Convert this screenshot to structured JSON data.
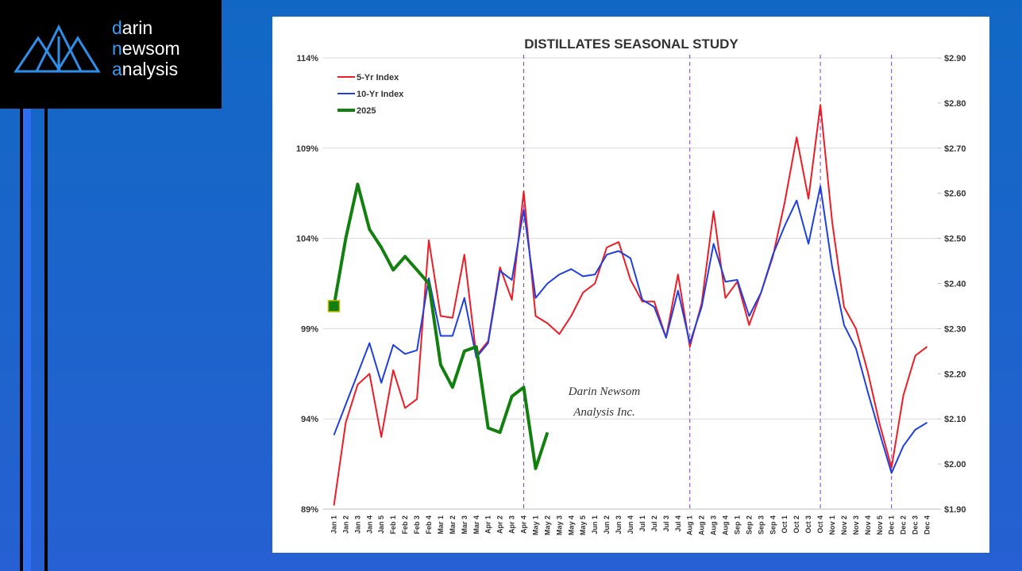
{
  "logo": [
    "darin",
    "newsom",
    "analysis"
  ],
  "chart_data": {
    "type": "line",
    "title": "DISTILLATES SEASONAL STUDY",
    "categories": [
      "Jan 1",
      "Jan 2",
      "Jan 3",
      "Jan 4",
      "Jan 5",
      "Feb 1",
      "Feb 2",
      "Feb 3",
      "Feb 4",
      "Mar 1",
      "Mar 2",
      "Mar 3",
      "Mar 4",
      "Apr 1",
      "Apr 2",
      "Apr 3",
      "Apr 4",
      "May 1",
      "May 2",
      "May 3",
      "May 4",
      "May 5",
      "Jun 1",
      "Jun 2",
      "Jun 3",
      "Jun 4",
      "Jul 1",
      "Jul 2",
      "Jul 3",
      "Jul 4",
      "Aug 1",
      "Aug 2",
      "Aug 3",
      "Aug 4",
      "Sep 1",
      "Sep 2",
      "Sep 3",
      "Sep 4",
      "Oct 1",
      "Oct 2",
      "Oct 3",
      "Oct 4",
      "Nov 1",
      "Nov 2",
      "Nov 3",
      "Nov 4",
      "Nov 5",
      "Dec 1",
      "Dec 2",
      "Dec 3",
      "Dec 4"
    ],
    "series": [
      {
        "name": "5-Yr Index",
        "color": "#ee1c25",
        "values": [
          89.2,
          93.8,
          95.9,
          96.5,
          93.0,
          96.7,
          94.6,
          95.1,
          103.9,
          99.7,
          99.6,
          103.1,
          97.5,
          98.3,
          102.4,
          100.6,
          106.6,
          99.7,
          99.3,
          98.7,
          99.7,
          101.0,
          101.5,
          103.5,
          103.8,
          101.7,
          100.5,
          100.5,
          98.5,
          102.0,
          98.0,
          100.4,
          105.5,
          100.7,
          101.6,
          99.2,
          101.0,
          103.0,
          106.0,
          109.6,
          106.2,
          111.4,
          104.9,
          100.2,
          99.0,
          96.6,
          93.7,
          91.3,
          95.3,
          97.5,
          98.0
        ]
      },
      {
        "name": "10-Yr Index",
        "color": "#1f3fe0",
        "values": [
          93.1,
          94.8,
          96.5,
          98.2,
          96.0,
          98.1,
          97.6,
          97.8,
          101.8,
          98.6,
          98.6,
          100.7,
          97.4,
          98.2,
          102.2,
          101.7,
          105.6,
          100.7,
          101.5,
          102.0,
          102.3,
          101.9,
          102.0,
          103.1,
          103.3,
          102.9,
          100.6,
          100.2,
          98.5,
          101.1,
          98.2,
          100.2,
          103.7,
          101.6,
          101.7,
          99.7,
          101.0,
          103.1,
          104.7,
          106.1,
          103.7,
          106.9,
          102.4,
          99.2,
          97.9,
          95.5,
          93.2,
          91.0,
          92.5,
          93.4,
          93.8
        ]
      },
      {
        "name": "2025",
        "color": "#12800f",
        "axis": "y2",
        "values": [
          2.35,
          2.5,
          2.62,
          2.52,
          2.48,
          2.43,
          2.46,
          2.43,
          2.4,
          2.22,
          2.17,
          2.25,
          2.26,
          2.08,
          2.07,
          2.15,
          2.17,
          1.99,
          2.07,
          null,
          null,
          null,
          null,
          null,
          null,
          null,
          null,
          null,
          null,
          null,
          null,
          null,
          null,
          null,
          null,
          null,
          null,
          null,
          null,
          null,
          null,
          null,
          null,
          null,
          null,
          null,
          null,
          null,
          null,
          null,
          null
        ]
      }
    ],
    "ylim": [
      89,
      114
    ],
    "yticks": [
      {
        "value": 89,
        "label": "89%"
      },
      {
        "value": 94,
        "label": "94%"
      },
      {
        "value": 99,
        "label": "99%"
      },
      {
        "value": 104,
        "label": "104%"
      },
      {
        "value": 109,
        "label": "109%"
      },
      {
        "value": 114,
        "label": "114%"
      }
    ],
    "y2lim": [
      1.9,
      2.9
    ],
    "y2ticks": [
      {
        "value": 1.9,
        "label": "$1.90"
      },
      {
        "value": 2.0,
        "label": "$2.00"
      },
      {
        "value": 2.1,
        "label": "$2.10"
      },
      {
        "value": 2.2,
        "label": "$2.20"
      },
      {
        "value": 2.3,
        "label": "$2.30"
      },
      {
        "value": 2.4,
        "label": "$2.40"
      },
      {
        "value": 2.5,
        "label": "$2.50"
      },
      {
        "value": 2.6,
        "label": "$2.60"
      },
      {
        "value": 2.7,
        "label": "$2.70"
      },
      {
        "value": 2.8,
        "label": "$2.80"
      },
      {
        "value": 2.9,
        "label": "$2.90"
      }
    ],
    "grid": true,
    "legend": "upper left",
    "vlines": [
      "Apr 4",
      "Aug 1",
      "Oct 4",
      "Dec 1"
    ],
    "watermark": [
      "Darin Newsom",
      "Analysis Inc."
    ]
  }
}
